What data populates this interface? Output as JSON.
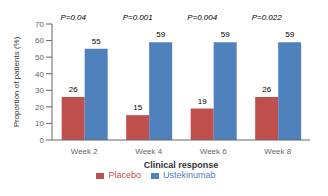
{
  "chart_data": {
    "type": "bar",
    "categories": [
      "Week 2",
      "Week 4",
      "Week 6",
      "Week 8"
    ],
    "series": [
      {
        "name": "Placebo",
        "color": "#c0504d",
        "values": [
          26,
          15,
          19,
          26
        ]
      },
      {
        "name": "Ustekinumab",
        "color": "#4f81bd",
        "values": [
          55,
          59,
          59,
          59
        ]
      }
    ],
    "annotations": [
      "P=0.04",
      "P=0.001",
      "P=0.004",
      "P=0.022"
    ],
    "ylabel": "Proportion of patients (%)",
    "xlabel": "Clinical response",
    "ylim": [
      0,
      70
    ],
    "yticks": [
      0,
      10,
      20,
      30,
      40,
      50,
      60,
      70
    ],
    "data_labels": true
  }
}
